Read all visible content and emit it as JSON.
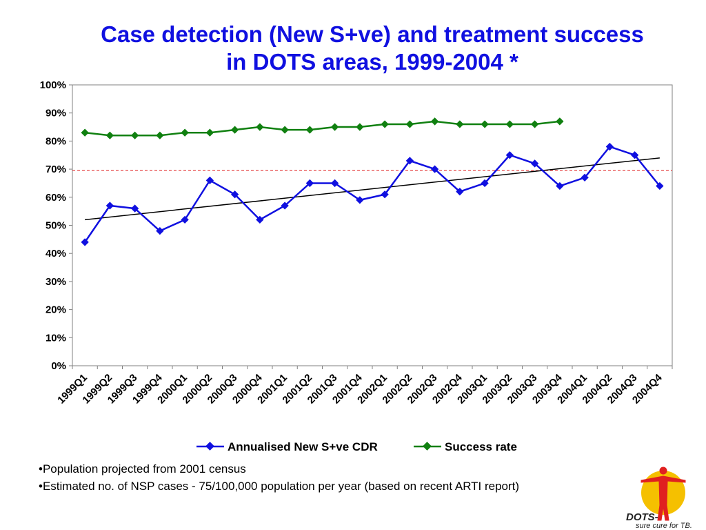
{
  "title_line1": "Case detection (New S+ve) and treatment success",
  "title_line2": "in DOTS areas, 1999-2004 *",
  "notes": [
    "•Population projected from 2001 census",
    "•Estimated no. of NSP cases - 75/100,000 population per year (based on recent ARTI report)"
  ],
  "logo": {
    "text_main": "DOTS-",
    "text_sub": "sure cure for TB."
  },
  "chart_data": {
    "type": "line",
    "categories": [
      "1999Q1",
      "1999Q2",
      "1999Q3",
      "1999Q4",
      "2000Q1",
      "2000Q2",
      "2000Q3",
      "2000Q4",
      "2001Q1",
      "2001Q2",
      "2001Q3",
      "2001Q4",
      "2002Q1",
      "2002Q2",
      "2002Q3",
      "2002Q4",
      "2003Q1",
      "2003Q2",
      "2003Q3",
      "2003Q4",
      "2004Q1",
      "2004Q2",
      "2004Q3",
      "2004Q4"
    ],
    "ylim": [
      0,
      100
    ],
    "yticks": [
      "0%",
      "10%",
      "20%",
      "30%",
      "40%",
      "50%",
      "60%",
      "70%",
      "80%",
      "90%",
      "100%"
    ],
    "series": [
      {
        "name": "Annualised New S+ve CDR",
        "color": "#1010e0",
        "values": [
          44,
          57,
          56,
          48,
          52,
          66,
          61,
          52,
          57,
          65,
          65,
          59,
          61,
          73,
          70,
          62,
          65,
          75,
          72,
          64,
          67,
          78,
          75,
          64
        ]
      },
      {
        "name": "Success rate",
        "color": "#108010",
        "values": [
          83,
          82,
          82,
          82,
          83,
          83,
          84,
          85,
          84,
          84,
          85,
          85,
          86,
          86,
          87,
          86,
          86,
          86,
          86,
          87,
          null,
          null,
          null,
          null
        ]
      }
    ],
    "trendline": {
      "color": "#000000",
      "start": 52,
      "end": 74
    },
    "reference_line": {
      "value": 69.5,
      "color": "#e02020",
      "style": "dashed"
    },
    "grid": false,
    "legend": "bottom"
  }
}
